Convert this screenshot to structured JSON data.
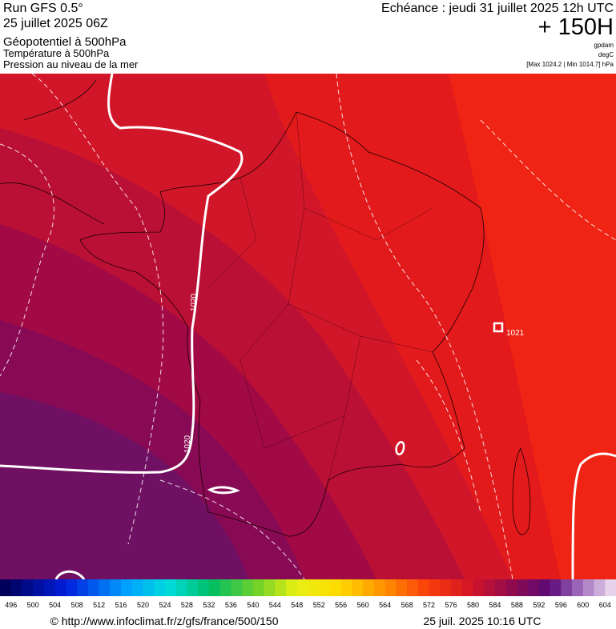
{
  "header": {
    "run": "Run GFS 0.5°",
    "run_date": "25 juillet 2025 06Z",
    "fields": [
      "Géopotentiel à 500hPa",
      "Température à 500hPa",
      "Pression au niveau de la mer"
    ],
    "valid_time": "Echéance : jeudi 31 juillet 2025 12h UTC",
    "lead_time": "+ 150H",
    "units": [
      "gpdam",
      "degC"
    ],
    "pressure_range": "[Max 1024.2 | Min 1014.7] hPa"
  },
  "map": {
    "isobar_labels": [
      "1020",
      "1020",
      "1021"
    ]
  },
  "colorbar": {
    "ticks": [
      496,
      500,
      504,
      508,
      512,
      516,
      520,
      524,
      528,
      532,
      536,
      540,
      544,
      548,
      552,
      556,
      560,
      564,
      568,
      572,
      576,
      580,
      584,
      588,
      592,
      596,
      600,
      604
    ]
  },
  "footer": {
    "url": "© http://www.infoclimat.fr/z/gfs/france/500/150",
    "timestamp": "25 juil. 2025 10:16 UTC"
  }
}
